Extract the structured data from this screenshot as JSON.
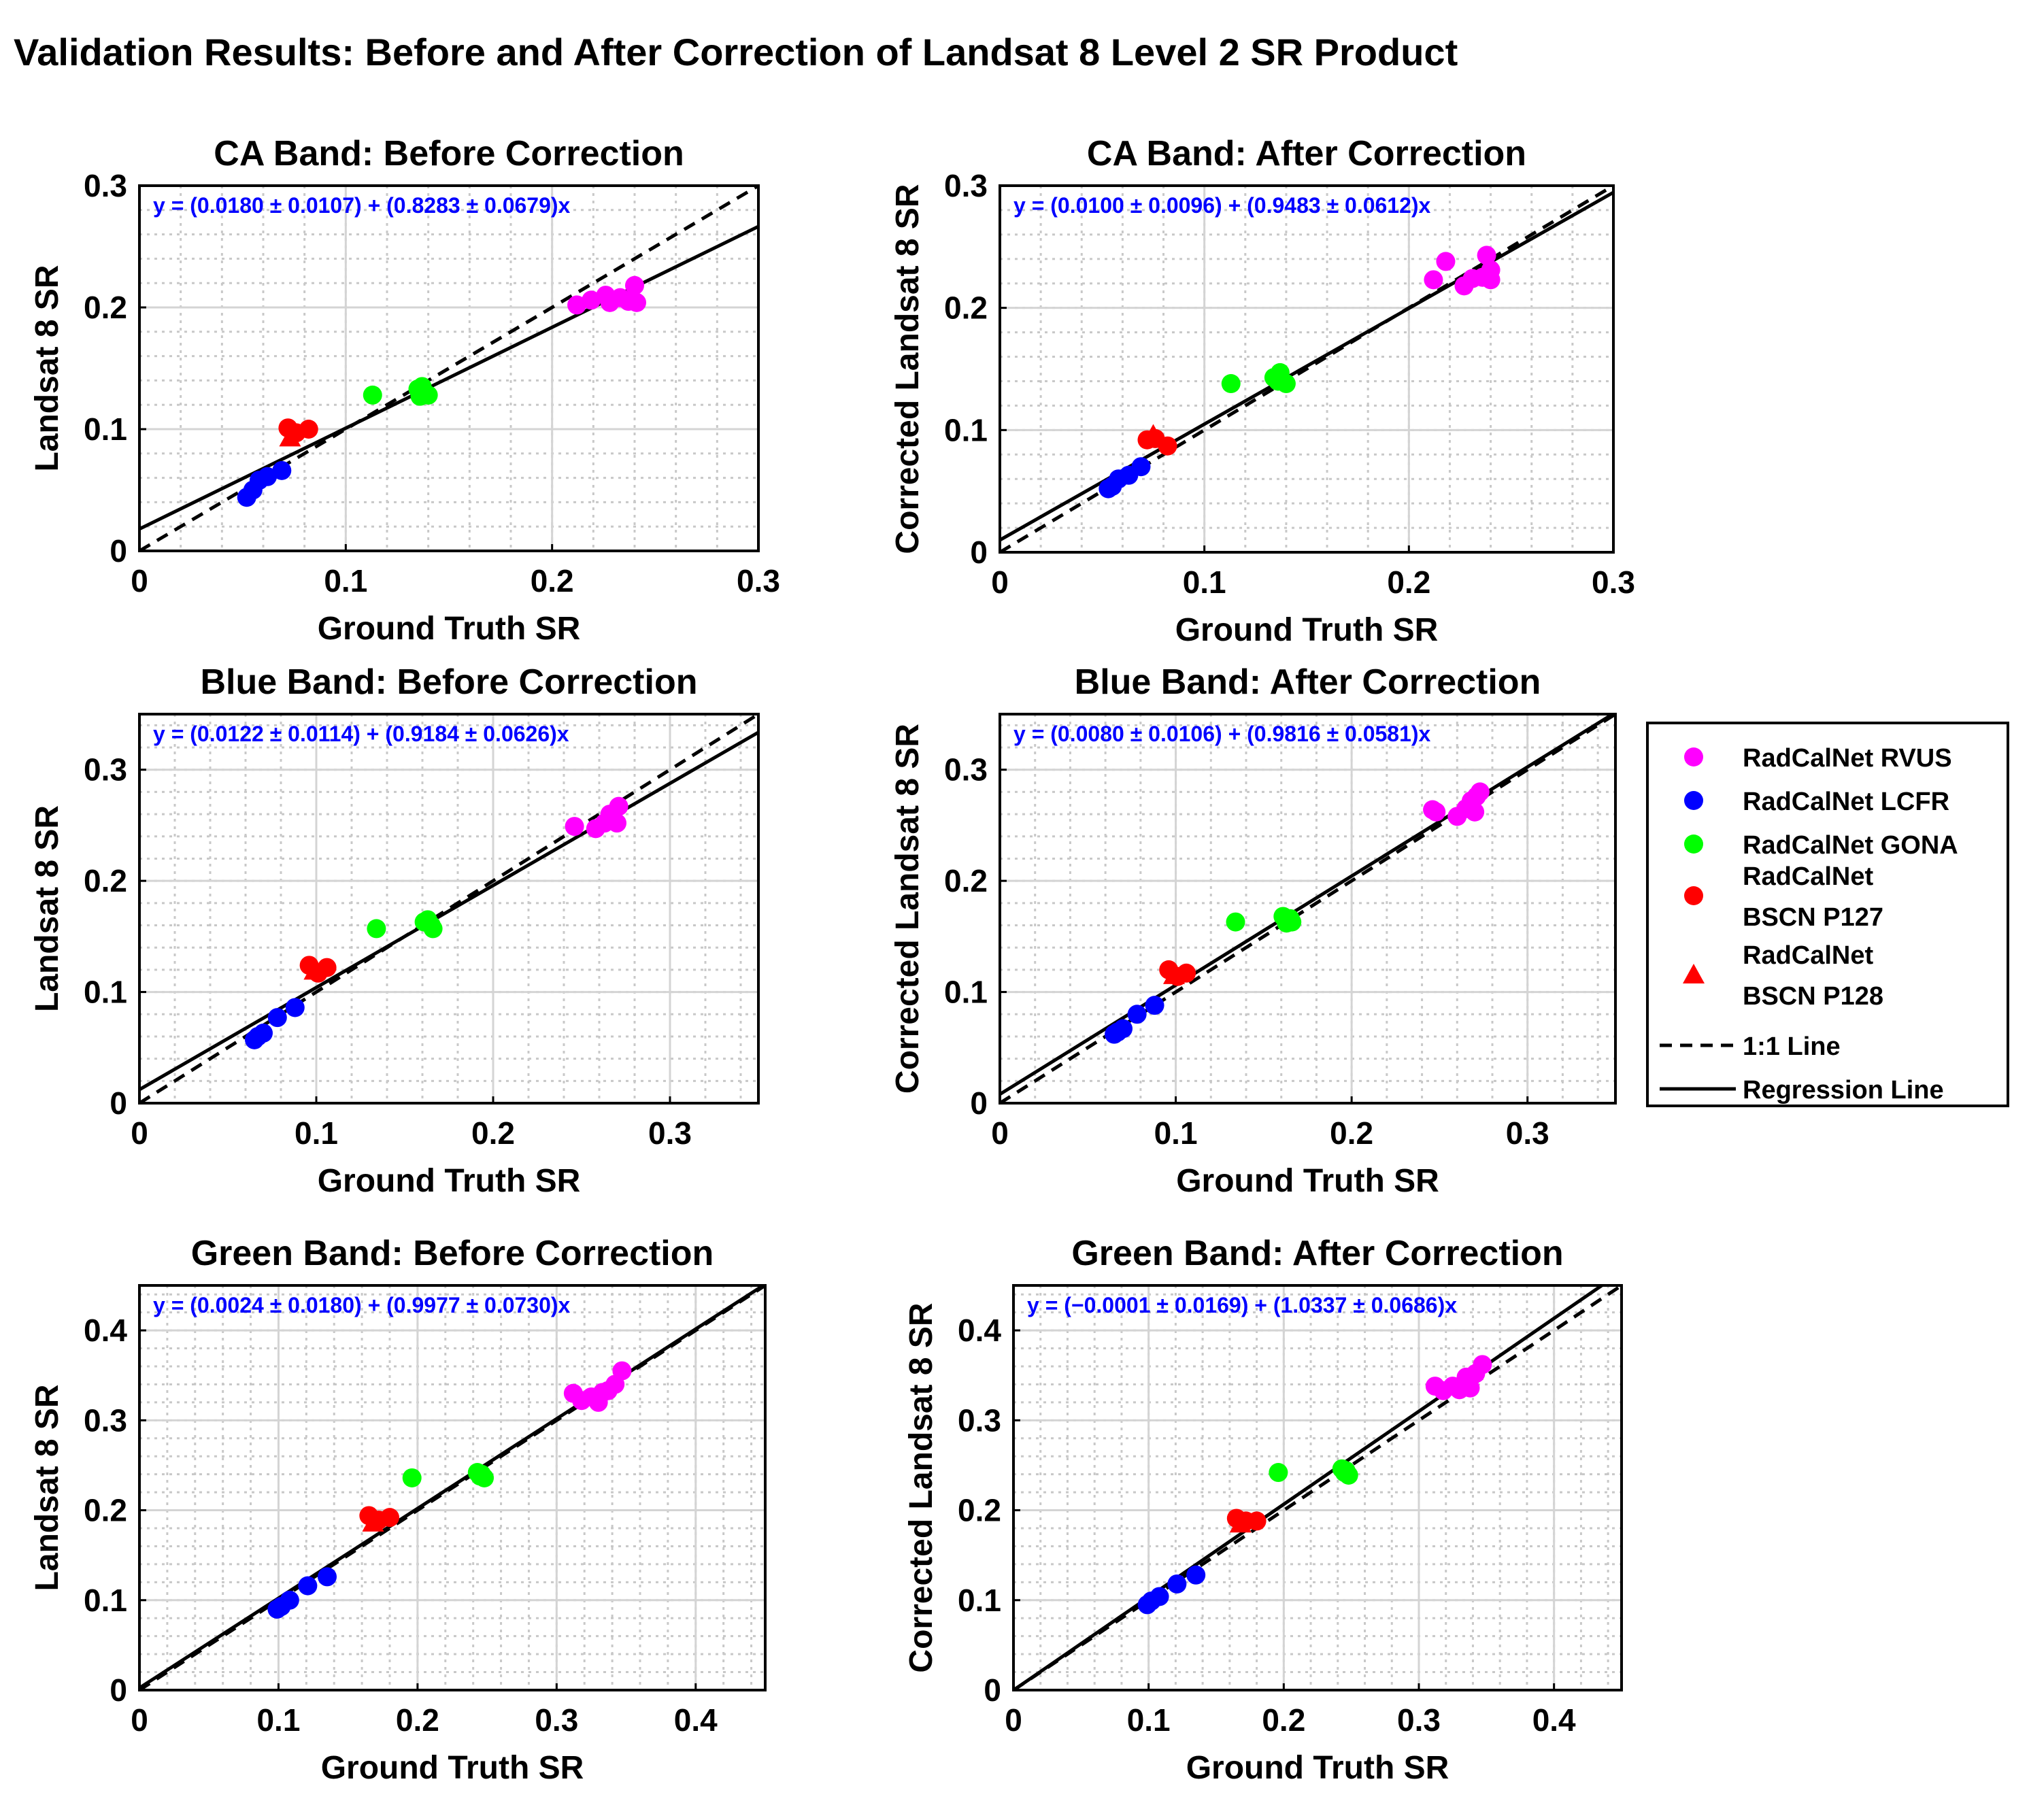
{
  "main_title": "Validation Results: Before and After Correction of Landsat 8 Level 2 SR Product",
  "legend": {
    "entries": [
      {
        "label": [
          "RadCalNet RVUS"
        ],
        "marker": "circle",
        "color": "#ff00ff"
      },
      {
        "label": [
          "RadCalNet LCFR"
        ],
        "marker": "circle",
        "color": "#0000ff"
      },
      {
        "label": [
          "RadCalNet GONA"
        ],
        "marker": "circle",
        "color": "#00ff00"
      },
      {
        "label": [
          "RadCalNet",
          "BSCN P127"
        ],
        "marker": "circle",
        "color": "#ff0000"
      },
      {
        "label": [
          "RadCalNet",
          "BSCN P128"
        ],
        "marker": "triangle",
        "color": "#ff0000"
      },
      {
        "label": [
          "1:1 Line"
        ],
        "marker": "dashed-line",
        "color": "#000000"
      },
      {
        "label": [
          "Regression Line"
        ],
        "marker": "solid-line",
        "color": "#000000"
      }
    ]
  },
  "chart_data": [
    {
      "type": "scatter",
      "title": "CA Band: Before Correction",
      "xlabel": "Ground Truth SR",
      "ylabel": "Landsat 8 SR",
      "xlim": [
        0,
        0.3
      ],
      "ylim": [
        0,
        0.3
      ],
      "xticks": [
        0,
        0.1,
        0.2,
        0.3
      ],
      "yticks": [
        0,
        0.1,
        0.2,
        0.3
      ],
      "tick_labels": [
        "0",
        "0.1",
        "0.2",
        "0.3"
      ],
      "equation": "y = (0.0180 ± 0.0107) + (0.8283 ± 0.0679)x",
      "regression": {
        "intercept": 0.018,
        "slope": 0.8283
      },
      "series": [
        {
          "name": "RadCalNet RVUS",
          "points": [
            [
              0.212,
              0.202
            ],
            [
              0.219,
              0.206
            ],
            [
              0.228,
              0.204
            ],
            [
              0.233,
              0.208
            ],
            [
              0.237,
              0.205
            ],
            [
              0.24,
              0.218
            ],
            [
              0.241,
              0.204
            ],
            [
              0.226,
              0.21
            ]
          ]
        },
        {
          "name": "RadCalNet LCFR",
          "points": [
            [
              0.052,
              0.044
            ],
            [
              0.055,
              0.05
            ],
            [
              0.058,
              0.058
            ],
            [
              0.062,
              0.061
            ],
            [
              0.069,
              0.066
            ]
          ]
        },
        {
          "name": "RadCalNet GONA",
          "points": [
            [
              0.113,
              0.128
            ],
            [
              0.135,
              0.133
            ],
            [
              0.137,
              0.135
            ],
            [
              0.14,
              0.128
            ],
            [
              0.136,
              0.127
            ]
          ]
        },
        {
          "name": "RadCalNet BSCN P127",
          "points": [
            [
              0.072,
              0.101
            ],
            [
              0.076,
              0.097
            ],
            [
              0.082,
              0.1
            ]
          ]
        },
        {
          "name": "RadCalNet BSCN P128",
          "points": [
            [
              0.073,
              0.093
            ]
          ]
        }
      ]
    },
    {
      "type": "scatter",
      "title": "CA Band: After Correction",
      "xlabel": "Ground Truth SR",
      "ylabel": "Corrected Landsat 8 SR",
      "xlim": [
        0,
        0.3
      ],
      "ylim": [
        0,
        0.3
      ],
      "xticks": [
        0,
        0.1,
        0.2,
        0.3
      ],
      "yticks": [
        0,
        0.1,
        0.2,
        0.3
      ],
      "tick_labels": [
        "0",
        "0.1",
        "0.2",
        "0.3"
      ],
      "equation": "y = (0.0100 ± 0.0096) + (0.9483 ± 0.0612)x",
      "regression": {
        "intercept": 0.01,
        "slope": 0.9483
      },
      "series": [
        {
          "name": "RadCalNet RVUS",
          "points": [
            [
              0.212,
              0.223
            ],
            [
              0.218,
              0.238
            ],
            [
              0.227,
              0.218
            ],
            [
              0.231,
              0.224
            ],
            [
              0.236,
              0.225
            ],
            [
              0.238,
              0.243
            ],
            [
              0.24,
              0.231
            ],
            [
              0.24,
              0.223
            ]
          ]
        },
        {
          "name": "RadCalNet LCFR",
          "points": [
            [
              0.053,
              0.052
            ],
            [
              0.055,
              0.054
            ],
            [
              0.058,
              0.06
            ],
            [
              0.063,
              0.063
            ],
            [
              0.069,
              0.07
            ]
          ]
        },
        {
          "name": "RadCalNet GONA",
          "points": [
            [
              0.113,
              0.138
            ],
            [
              0.134,
              0.143
            ],
            [
              0.137,
              0.147
            ],
            [
              0.14,
              0.138
            ],
            [
              0.136,
              0.14
            ]
          ]
        },
        {
          "name": "RadCalNet BSCN P127",
          "points": [
            [
              0.072,
              0.092
            ],
            [
              0.076,
              0.093
            ],
            [
              0.082,
              0.087
            ]
          ]
        },
        {
          "name": "RadCalNet BSCN P128",
          "points": [
            [
              0.075,
              0.096
            ]
          ]
        }
      ]
    },
    {
      "type": "scatter",
      "title": "Blue Band: Before Correction",
      "xlabel": "Ground Truth SR",
      "ylabel": "Landsat 8 SR",
      "xlim": [
        0,
        0.35
      ],
      "ylim": [
        0,
        0.35
      ],
      "xticks": [
        0,
        0.1,
        0.2,
        0.3
      ],
      "yticks": [
        0,
        0.1,
        0.2,
        0.3
      ],
      "tick_labels": [
        "0",
        "0.1",
        "0.2",
        "0.3"
      ],
      "equation": "y = (0.0122 ± 0.0114) + (0.9184 ± 0.0626)x",
      "regression": {
        "intercept": 0.0122,
        "slope": 0.9184
      },
      "series": [
        {
          "name": "RadCalNet RVUS",
          "points": [
            [
              0.246,
              0.249
            ],
            [
              0.258,
              0.247
            ],
            [
              0.263,
              0.252
            ],
            [
              0.266,
              0.26
            ],
            [
              0.268,
              0.256
            ],
            [
              0.27,
              0.252
            ],
            [
              0.271,
              0.267
            ]
          ]
        },
        {
          "name": "RadCalNet LCFR",
          "points": [
            [
              0.065,
              0.057
            ],
            [
              0.067,
              0.06
            ],
            [
              0.07,
              0.063
            ],
            [
              0.078,
              0.077
            ],
            [
              0.088,
              0.086
            ]
          ]
        },
        {
          "name": "RadCalNet GONA",
          "points": [
            [
              0.134,
              0.157
            ],
            [
              0.161,
              0.163
            ],
            [
              0.163,
              0.165
            ],
            [
              0.166,
              0.157
            ],
            [
              0.165,
              0.16
            ]
          ]
        },
        {
          "name": "RadCalNet BSCN P127",
          "points": [
            [
              0.096,
              0.124
            ],
            [
              0.101,
              0.117
            ],
            [
              0.106,
              0.122
            ]
          ]
        },
        {
          "name": "RadCalNet BSCN P128",
          "points": [
            [
              0.099,
              0.119
            ]
          ]
        }
      ]
    },
    {
      "type": "scatter",
      "title": "Blue Band: After Correction",
      "xlabel": "Ground Truth SR",
      "ylabel": "Corrected Landsat 8 SR",
      "xlim": [
        0,
        0.35
      ],
      "ylim": [
        0,
        0.35
      ],
      "xticks": [
        0,
        0.1,
        0.2,
        0.3
      ],
      "yticks": [
        0,
        0.1,
        0.2,
        0.3
      ],
      "tick_labels": [
        "0",
        "0.1",
        "0.2",
        "0.3"
      ],
      "equation": "y = (0.0080 ± 0.0106) + (0.9816 ± 0.0581)x",
      "regression": {
        "intercept": 0.008,
        "slope": 0.9816
      },
      "series": [
        {
          "name": "RadCalNet RVUS",
          "points": [
            [
              0.246,
              0.264
            ],
            [
              0.248,
              0.262
            ],
            [
              0.26,
              0.258
            ],
            [
              0.265,
              0.265
            ],
            [
              0.268,
              0.272
            ],
            [
              0.27,
              0.262
            ],
            [
              0.271,
              0.276
            ],
            [
              0.273,
              0.28
            ]
          ]
        },
        {
          "name": "RadCalNet LCFR",
          "points": [
            [
              0.065,
              0.062
            ],
            [
              0.067,
              0.064
            ],
            [
              0.07,
              0.067
            ],
            [
              0.078,
              0.08
            ],
            [
              0.088,
              0.088
            ]
          ]
        },
        {
          "name": "RadCalNet GONA",
          "points": [
            [
              0.134,
              0.163
            ],
            [
              0.161,
              0.168
            ],
            [
              0.163,
              0.162
            ],
            [
              0.166,
              0.163
            ],
            [
              0.165,
              0.166
            ]
          ]
        },
        {
          "name": "RadCalNet BSCN P127",
          "points": [
            [
              0.096,
              0.12
            ],
            [
              0.101,
              0.114
            ],
            [
              0.106,
              0.117
            ]
          ]
        },
        {
          "name": "RadCalNet BSCN P128",
          "points": [
            [
              0.099,
              0.115
            ]
          ]
        }
      ]
    },
    {
      "type": "scatter",
      "title": "Green Band: Before Correction",
      "xlabel": "Ground Truth SR",
      "ylabel": "Landsat 8 SR",
      "xlim": [
        0,
        0.45
      ],
      "ylim": [
        0,
        0.45
      ],
      "xticks": [
        0,
        0.1,
        0.2,
        0.3,
        0.4
      ],
      "yticks": [
        0,
        0.1,
        0.2,
        0.3,
        0.4
      ],
      "tick_labels": [
        "0",
        "0.1",
        "0.2",
        "0.3",
        "0.4"
      ],
      "equation": "y = (0.0024 ± 0.0180) + (0.9977 ± 0.0730)x",
      "regression": {
        "intercept": 0.0024,
        "slope": 0.9977
      },
      "series": [
        {
          "name": "RadCalNet RVUS",
          "points": [
            [
              0.312,
              0.33
            ],
            [
              0.318,
              0.322
            ],
            [
              0.325,
              0.326
            ],
            [
              0.33,
              0.32
            ],
            [
              0.333,
              0.331
            ],
            [
              0.337,
              0.333
            ],
            [
              0.342,
              0.34
            ],
            [
              0.347,
              0.355
            ]
          ]
        },
        {
          "name": "RadCalNet LCFR",
          "points": [
            [
              0.099,
              0.09
            ],
            [
              0.102,
              0.093
            ],
            [
              0.108,
              0.1
            ],
            [
              0.121,
              0.116
            ],
            [
              0.135,
              0.126
            ]
          ]
        },
        {
          "name": "RadCalNet GONA",
          "points": [
            [
              0.196,
              0.236
            ],
            [
              0.243,
              0.242
            ],
            [
              0.245,
              0.238
            ],
            [
              0.248,
              0.236
            ],
            [
              0.246,
              0.24
            ]
          ]
        },
        {
          "name": "RadCalNet BSCN P127",
          "points": [
            [
              0.165,
              0.194
            ],
            [
              0.172,
              0.189
            ],
            [
              0.18,
              0.192
            ]
          ]
        },
        {
          "name": "RadCalNet BSCN P128",
          "points": [
            [
              0.168,
              0.186
            ]
          ]
        }
      ]
    },
    {
      "type": "scatter",
      "title": "Green Band: After Correction",
      "xlabel": "Ground Truth SR",
      "ylabel": "Corrected Landsat 8 SR",
      "xlim": [
        0,
        0.45
      ],
      "ylim": [
        0,
        0.45
      ],
      "xticks": [
        0,
        0.1,
        0.2,
        0.3,
        0.4
      ],
      "yticks": [
        0,
        0.1,
        0.2,
        0.3,
        0.4
      ],
      "tick_labels": [
        "0",
        "0.1",
        "0.2",
        "0.3",
        "0.4"
      ],
      "equation": "y = (−0.0001 ± 0.0169) + (1.0337 ± 0.0686)x",
      "regression": {
        "intercept": -0.0001,
        "slope": 1.0337
      },
      "series": [
        {
          "name": "RadCalNet RVUS",
          "points": [
            [
              0.312,
              0.338
            ],
            [
              0.318,
              0.333
            ],
            [
              0.325,
              0.338
            ],
            [
              0.33,
              0.334
            ],
            [
              0.335,
              0.348
            ],
            [
              0.338,
              0.336
            ],
            [
              0.342,
              0.352
            ],
            [
              0.347,
              0.362
            ]
          ]
        },
        {
          "name": "RadCalNet LCFR",
          "points": [
            [
              0.099,
              0.095
            ],
            [
              0.102,
              0.099
            ],
            [
              0.108,
              0.104
            ],
            [
              0.121,
              0.118
            ],
            [
              0.135,
              0.128
            ]
          ]
        },
        {
          "name": "RadCalNet GONA",
          "points": [
            [
              0.196,
              0.242
            ],
            [
              0.243,
              0.246
            ],
            [
              0.245,
              0.242
            ],
            [
              0.248,
              0.239
            ],
            [
              0.246,
              0.244
            ]
          ]
        },
        {
          "name": "RadCalNet BSCN P127",
          "points": [
            [
              0.165,
              0.191
            ],
            [
              0.172,
              0.188
            ],
            [
              0.18,
              0.188
            ]
          ]
        },
        {
          "name": "RadCalNet BSCN P128",
          "points": [
            [
              0.168,
              0.185
            ]
          ]
        }
      ]
    }
  ]
}
